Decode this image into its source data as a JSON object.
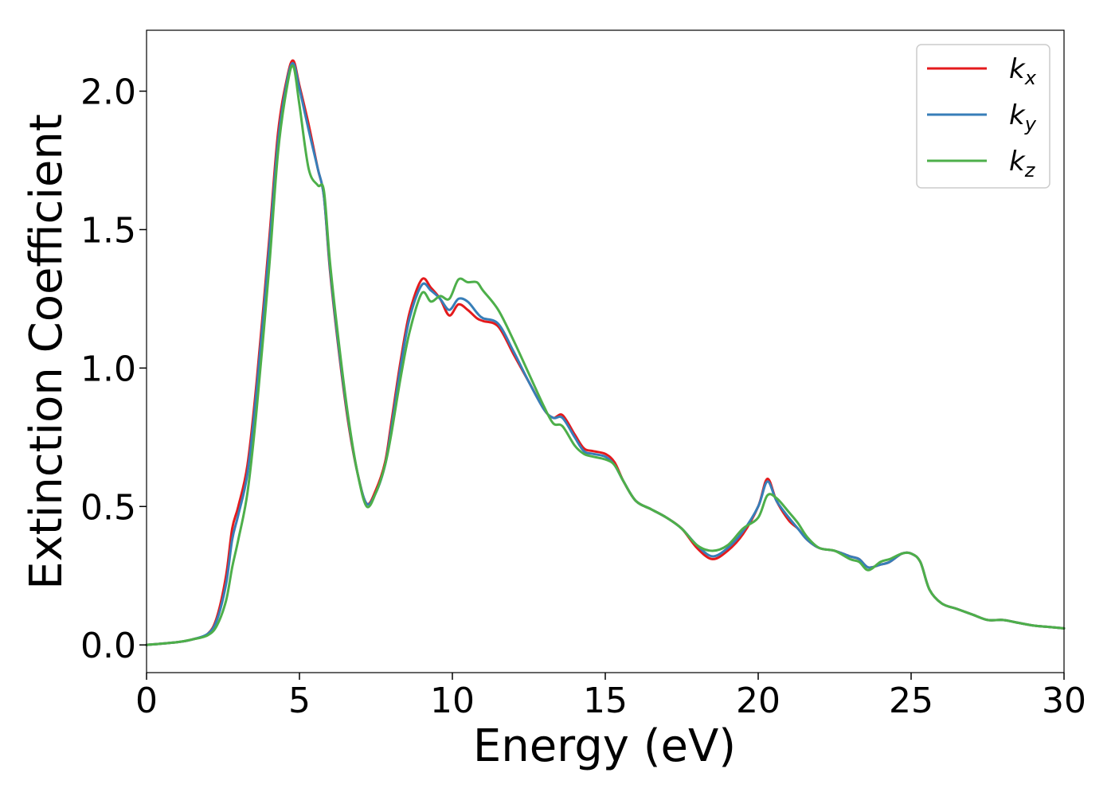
{
  "chart_data": {
    "type": "line",
    "xlabel": "Energy (eV)",
    "ylabel": "Extinction Coefficient",
    "xlim": [
      0,
      30
    ],
    "ylim": [
      -0.1,
      2.22
    ],
    "xticks": [
      0,
      5,
      10,
      15,
      20,
      25,
      30
    ],
    "xtick_labels": [
      "0",
      "5",
      "10",
      "15",
      "20",
      "25",
      "30"
    ],
    "yticks": [
      0.0,
      0.5,
      1.0,
      1.5,
      2.0
    ],
    "ytick_labels": [
      "0.0",
      "0.5",
      "1.0",
      "1.5",
      "2.0"
    ],
    "grid": false,
    "legend_position": "top-right",
    "series": [
      {
        "name": "k_x",
        "label_main": "k",
        "label_sub": "x",
        "color": "#e41a1c",
        "x": [
          0,
          1,
          1.5,
          2,
          2.3,
          2.6,
          2.8,
          3,
          3.3,
          3.6,
          4,
          4.3,
          4.6,
          4.8,
          5,
          5.3,
          5.6,
          5.8,
          6,
          6.3,
          6.6,
          6.9,
          7.2,
          7.5,
          7.8,
          8,
          8.3,
          8.6,
          9,
          9.3,
          9.6,
          9.9,
          10.2,
          10.5,
          10.8,
          11,
          11.5,
          12,
          12.5,
          13,
          13.3,
          13.6,
          14,
          14.3,
          14.6,
          15,
          15.3,
          15.6,
          16,
          16.5,
          17,
          17.5,
          18,
          18.5,
          19,
          19.5,
          20,
          20.3,
          20.6,
          21,
          21.3,
          21.6,
          22,
          22.5,
          23,
          23.3,
          23.6,
          24,
          24.3,
          24.7,
          25,
          25.3,
          25.6,
          26,
          26.5,
          27,
          27.5,
          28,
          28.5,
          29,
          29.5,
          30
        ],
        "y": [
          0,
          0.01,
          0.02,
          0.04,
          0.1,
          0.25,
          0.42,
          0.5,
          0.65,
          0.95,
          1.45,
          1.85,
          2.05,
          2.11,
          2.02,
          1.88,
          1.72,
          1.62,
          1.35,
          1.05,
          0.8,
          0.62,
          0.51,
          0.56,
          0.66,
          0.8,
          1.02,
          1.2,
          1.32,
          1.29,
          1.25,
          1.19,
          1.23,
          1.21,
          1.18,
          1.17,
          1.15,
          1.05,
          0.95,
          0.85,
          0.82,
          0.83,
          0.76,
          0.71,
          0.7,
          0.69,
          0.66,
          0.59,
          0.52,
          0.49,
          0.46,
          0.42,
          0.35,
          0.31,
          0.34,
          0.4,
          0.5,
          0.6,
          0.52,
          0.45,
          0.42,
          0.38,
          0.35,
          0.34,
          0.32,
          0.31,
          0.28,
          0.29,
          0.3,
          0.33,
          0.33,
          0.3,
          0.2,
          0.15,
          0.13,
          0.11,
          0.09,
          0.09,
          0.08,
          0.07,
          0.065,
          0.06
        ]
      },
      {
        "name": "k_y",
        "label_main": "k",
        "label_sub": "y",
        "color": "#377eb8",
        "x": [
          0,
          1,
          1.5,
          2,
          2.3,
          2.6,
          2.8,
          3,
          3.3,
          3.6,
          4,
          4.3,
          4.6,
          4.8,
          5,
          5.3,
          5.6,
          5.8,
          6,
          6.3,
          6.6,
          6.9,
          7.2,
          7.5,
          7.8,
          8,
          8.3,
          8.6,
          9,
          9.3,
          9.6,
          9.9,
          10.2,
          10.5,
          10.8,
          11,
          11.5,
          12,
          12.5,
          13,
          13.3,
          13.6,
          14,
          14.3,
          14.6,
          15,
          15.3,
          15.6,
          16,
          16.5,
          17,
          17.5,
          18,
          18.5,
          19,
          19.5,
          20,
          20.3,
          20.6,
          21,
          21.3,
          21.6,
          22,
          22.5,
          23,
          23.3,
          23.6,
          24,
          24.3,
          24.7,
          25,
          25.3,
          25.6,
          26,
          26.5,
          27,
          27.5,
          28,
          28.5,
          29,
          29.5,
          30
        ],
        "y": [
          0,
          0.01,
          0.02,
          0.04,
          0.09,
          0.22,
          0.38,
          0.47,
          0.62,
          0.92,
          1.42,
          1.82,
          2.04,
          2.1,
          2.01,
          1.86,
          1.72,
          1.62,
          1.36,
          1.06,
          0.81,
          0.62,
          0.51,
          0.55,
          0.65,
          0.78,
          1.0,
          1.18,
          1.3,
          1.28,
          1.25,
          1.21,
          1.25,
          1.24,
          1.2,
          1.18,
          1.16,
          1.06,
          0.95,
          0.85,
          0.82,
          0.82,
          0.75,
          0.7,
          0.69,
          0.68,
          0.65,
          0.59,
          0.52,
          0.49,
          0.46,
          0.42,
          0.36,
          0.32,
          0.35,
          0.41,
          0.5,
          0.59,
          0.52,
          0.46,
          0.42,
          0.38,
          0.35,
          0.34,
          0.32,
          0.31,
          0.28,
          0.29,
          0.3,
          0.33,
          0.33,
          0.3,
          0.2,
          0.15,
          0.13,
          0.11,
          0.09,
          0.09,
          0.08,
          0.07,
          0.065,
          0.06
        ]
      },
      {
        "name": "k_z",
        "label_main": "k",
        "label_sub": "z",
        "color": "#4daf4a",
        "x": [
          0,
          1,
          1.5,
          2,
          2.3,
          2.6,
          2.8,
          3,
          3.3,
          3.6,
          4,
          4.3,
          4.6,
          4.8,
          5,
          5.3,
          5.6,
          5.8,
          6,
          6.3,
          6.6,
          6.9,
          7.2,
          7.5,
          7.8,
          8,
          8.3,
          8.6,
          9,
          9.3,
          9.6,
          9.9,
          10.2,
          10.5,
          10.8,
          11,
          11.5,
          12,
          12.5,
          13,
          13.3,
          13.6,
          14,
          14.3,
          14.6,
          15,
          15.3,
          15.6,
          16,
          16.5,
          17,
          17.5,
          18,
          18.5,
          19,
          19.5,
          20,
          20.3,
          20.6,
          21,
          21.3,
          21.6,
          22,
          22.5,
          23,
          23.3,
          23.6,
          24,
          24.3,
          24.7,
          25,
          25.3,
          25.6,
          26,
          26.5,
          27,
          27.5,
          28,
          28.5,
          29,
          29.5,
          30
        ],
        "y": [
          0,
          0.01,
          0.02,
          0.035,
          0.07,
          0.16,
          0.28,
          0.38,
          0.55,
          0.85,
          1.35,
          1.78,
          2.02,
          2.09,
          1.95,
          1.72,
          1.66,
          1.64,
          1.38,
          1.08,
          0.82,
          0.62,
          0.5,
          0.55,
          0.65,
          0.76,
          0.96,
          1.13,
          1.27,
          1.24,
          1.26,
          1.25,
          1.32,
          1.31,
          1.31,
          1.28,
          1.21,
          1.1,
          0.98,
          0.86,
          0.8,
          0.79,
          0.72,
          0.69,
          0.68,
          0.67,
          0.65,
          0.59,
          0.52,
          0.49,
          0.46,
          0.42,
          0.36,
          0.34,
          0.36,
          0.42,
          0.46,
          0.54,
          0.53,
          0.48,
          0.44,
          0.39,
          0.35,
          0.34,
          0.31,
          0.3,
          0.27,
          0.3,
          0.31,
          0.33,
          0.33,
          0.3,
          0.2,
          0.15,
          0.13,
          0.11,
          0.09,
          0.09,
          0.08,
          0.07,
          0.065,
          0.06
        ]
      }
    ]
  }
}
